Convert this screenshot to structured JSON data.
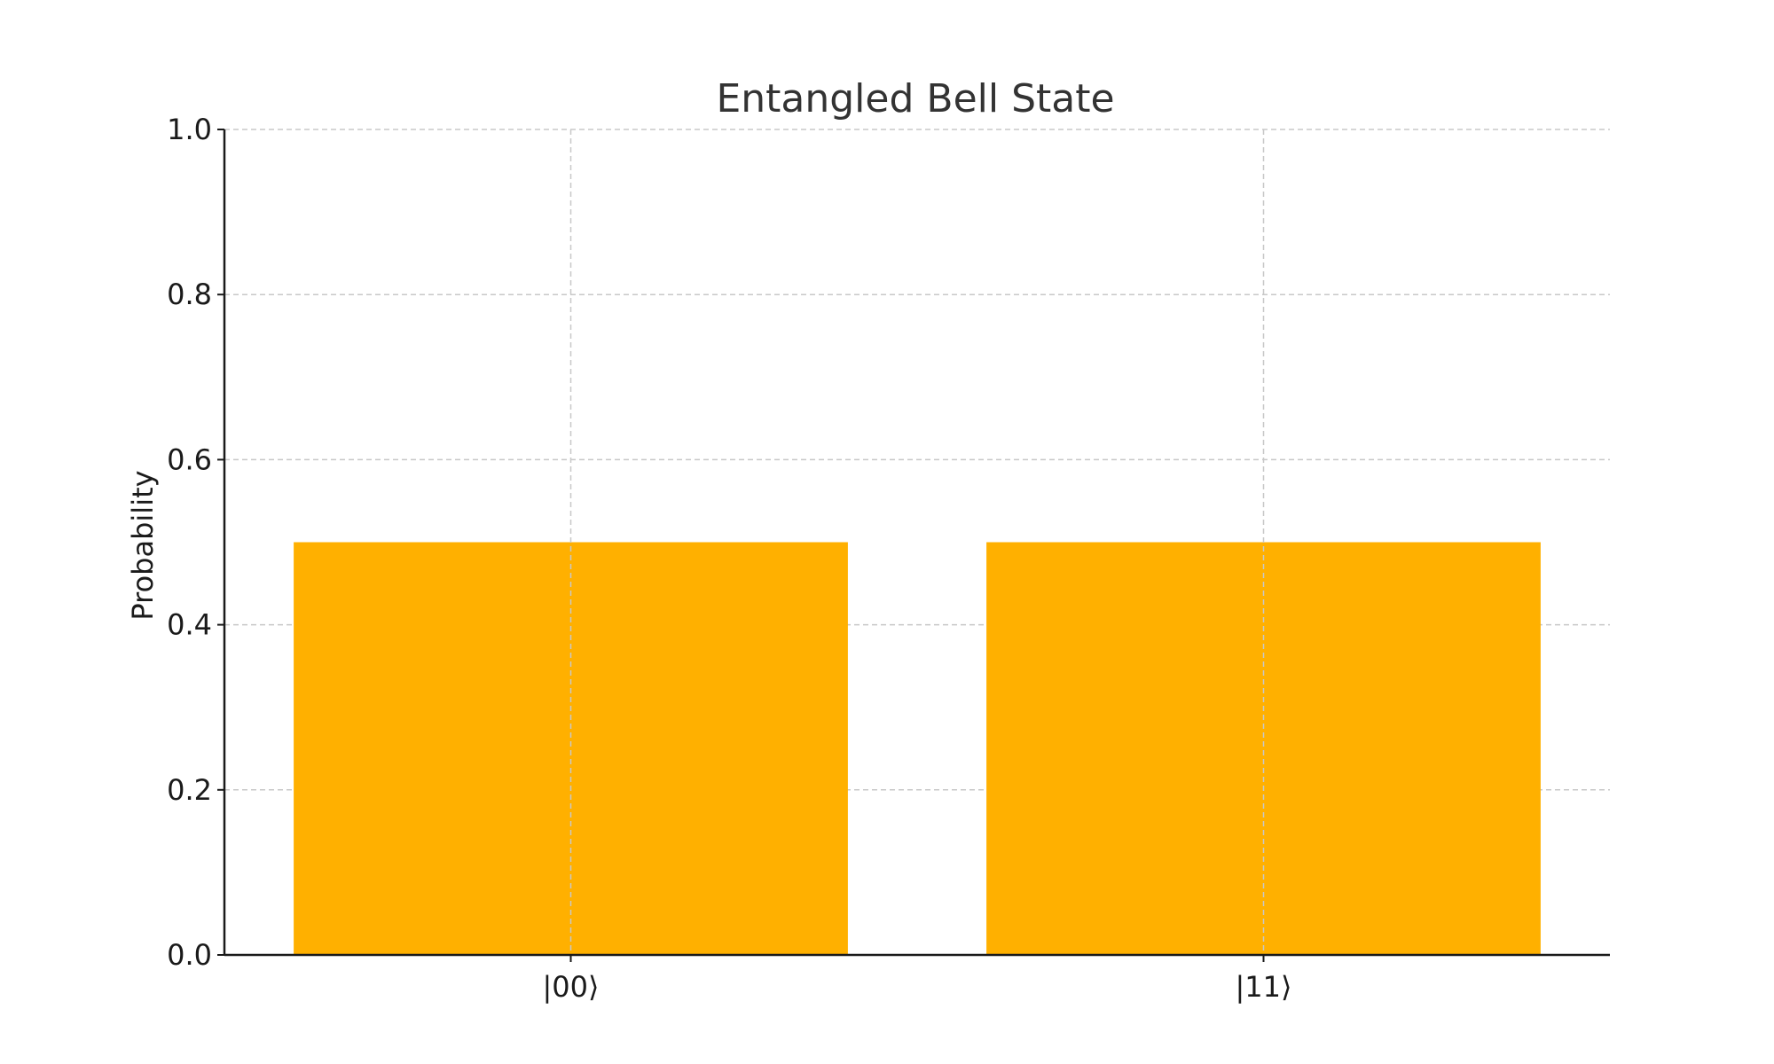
{
  "chart_data": {
    "type": "bar",
    "title": "Entangled Bell State",
    "xlabel": "",
    "ylabel": "Probability",
    "categories": [
      "|00⟩",
      "|11⟩"
    ],
    "values": [
      0.5,
      0.5
    ],
    "ylim": [
      0,
      1
    ],
    "yticks": [
      "0.0",
      "0.2",
      "0.4",
      "0.6",
      "0.8",
      "1.0"
    ],
    "grid": true,
    "bar_color": "#FFB000",
    "legend": "none"
  }
}
